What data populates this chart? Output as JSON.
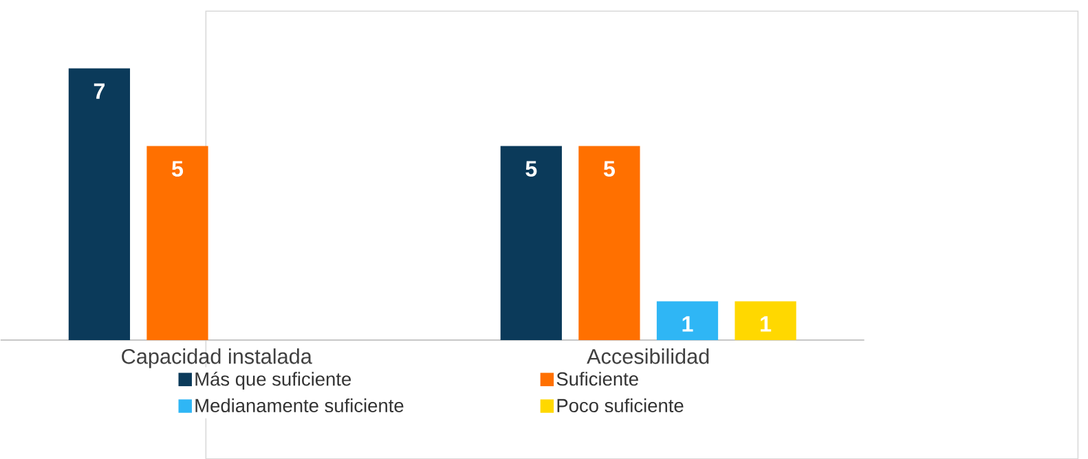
{
  "chart_data": {
    "type": "bar",
    "categories": [
      "Capacidad instalada",
      "Accesibilidad"
    ],
    "series": [
      {
        "name": "Más que suficiente",
        "color": "#0b3a5a",
        "values": [
          7,
          5
        ]
      },
      {
        "name": "Suficiente",
        "color": "#ff7000",
        "values": [
          5,
          5
        ]
      },
      {
        "name": "Medianamente suficiente",
        "color": "#2fb6f5",
        "values": [
          null,
          1
        ]
      },
      {
        "name": "Poco suficiente",
        "color": "#ffd800",
        "values": [
          null,
          1
        ]
      }
    ],
    "data_labels": true,
    "grid": false,
    "legend": "bottom"
  }
}
